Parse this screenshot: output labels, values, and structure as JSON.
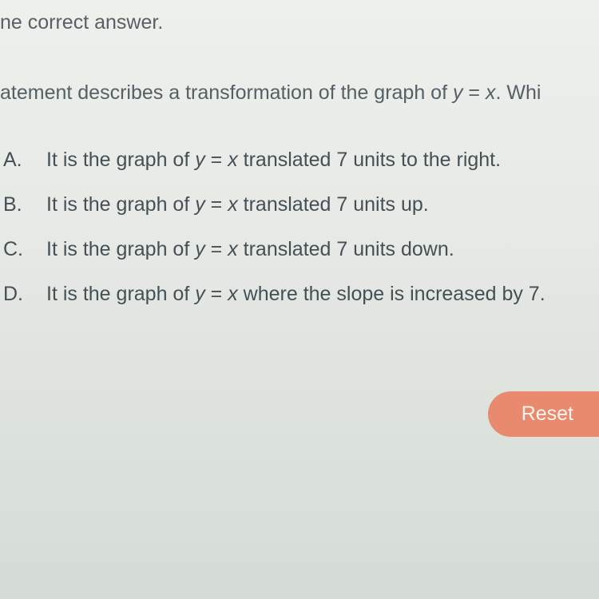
{
  "instruction": "ne correct answer.",
  "question_prefix": "atement describes a transformation of the graph of ",
  "equation_y": "y",
  "equation_eq": " = ",
  "equation_x": "x",
  "question_suffix": ". Whi",
  "options": [
    {
      "letter": "A.",
      "prefix": "It is the graph of ",
      "suffix": " translated 7 units to the right."
    },
    {
      "letter": "B.",
      "prefix": "It is the graph of ",
      "suffix": " translated 7 units up."
    },
    {
      "letter": "C.",
      "prefix": "It is the graph of ",
      "suffix": " translated 7 units down."
    },
    {
      "letter": "D.",
      "prefix": "It is the graph of ",
      "suffix": " where the slope is increased by 7."
    }
  ],
  "reset_label": "Reset",
  "colors": {
    "text": "#4a5558",
    "button_bg": "#e98a6e",
    "button_text": "#fdf5f1"
  }
}
